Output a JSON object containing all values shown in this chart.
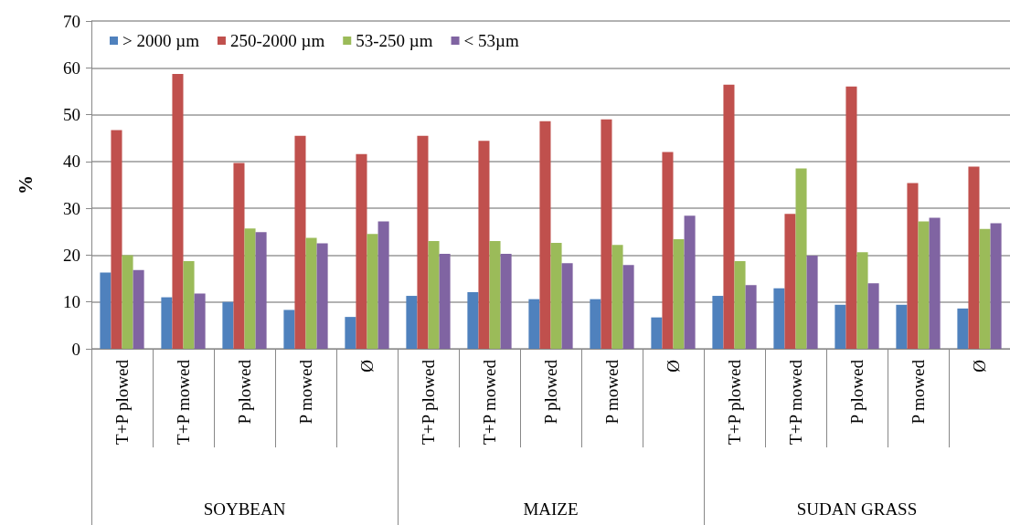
{
  "chart_data": {
    "type": "bar",
    "ylabel": "%",
    "categories": [
      "T+P plowed",
      "T+P mowed",
      "P plowed",
      "P mowed",
      "Ø",
      "T+P plowed",
      "T+P mowed",
      "P plowed",
      "P mowed",
      "Ø",
      "T+P plowed",
      "T+P mowed",
      "P plowed",
      "P mowed",
      "Ø"
    ],
    "annotations": [
      "SOYBEAN",
      "MAIZE",
      "SUDAN GRASS"
    ],
    "series": [
      {
        "name": "> 2000 µm",
        "color": "#4f81bd",
        "values": [
          16.3,
          11,
          10,
          8.3,
          6.8,
          11.3,
          12.1,
          10.6,
          10.6,
          6.7,
          11.3,
          12.9,
          9.4,
          9.4,
          8.6
        ]
      },
      {
        "name": "250-2000 µm",
        "color": "#c0504d",
        "values": [
          46.7,
          58.7,
          39.7,
          45.5,
          41.6,
          45.5,
          44.4,
          48.6,
          49,
          42,
          56.4,
          28.8,
          56,
          35.4,
          38.9
        ]
      },
      {
        "name": "53-250 µm",
        "color": "#9bbb59",
        "values": [
          20,
          18.7,
          25.7,
          23.7,
          24.5,
          23,
          23,
          22.6,
          22.2,
          23.4,
          18.7,
          38.5,
          20.6,
          27.2,
          25.6
        ]
      },
      {
        "name": "< 53µm",
        "color": "#8064a2",
        "values": [
          16.8,
          11.8,
          24.9,
          22.5,
          27.2,
          20.3,
          20.3,
          18.3,
          17.9,
          28.4,
          13.6,
          19.9,
          14,
          28,
          26.8
        ]
      }
    ],
    "ylim": [
      0,
      70
    ],
    "yticks": [
      0,
      10,
      20,
      30,
      40,
      50,
      60,
      70
    ],
    "grid": "y",
    "legend": "top left"
  }
}
